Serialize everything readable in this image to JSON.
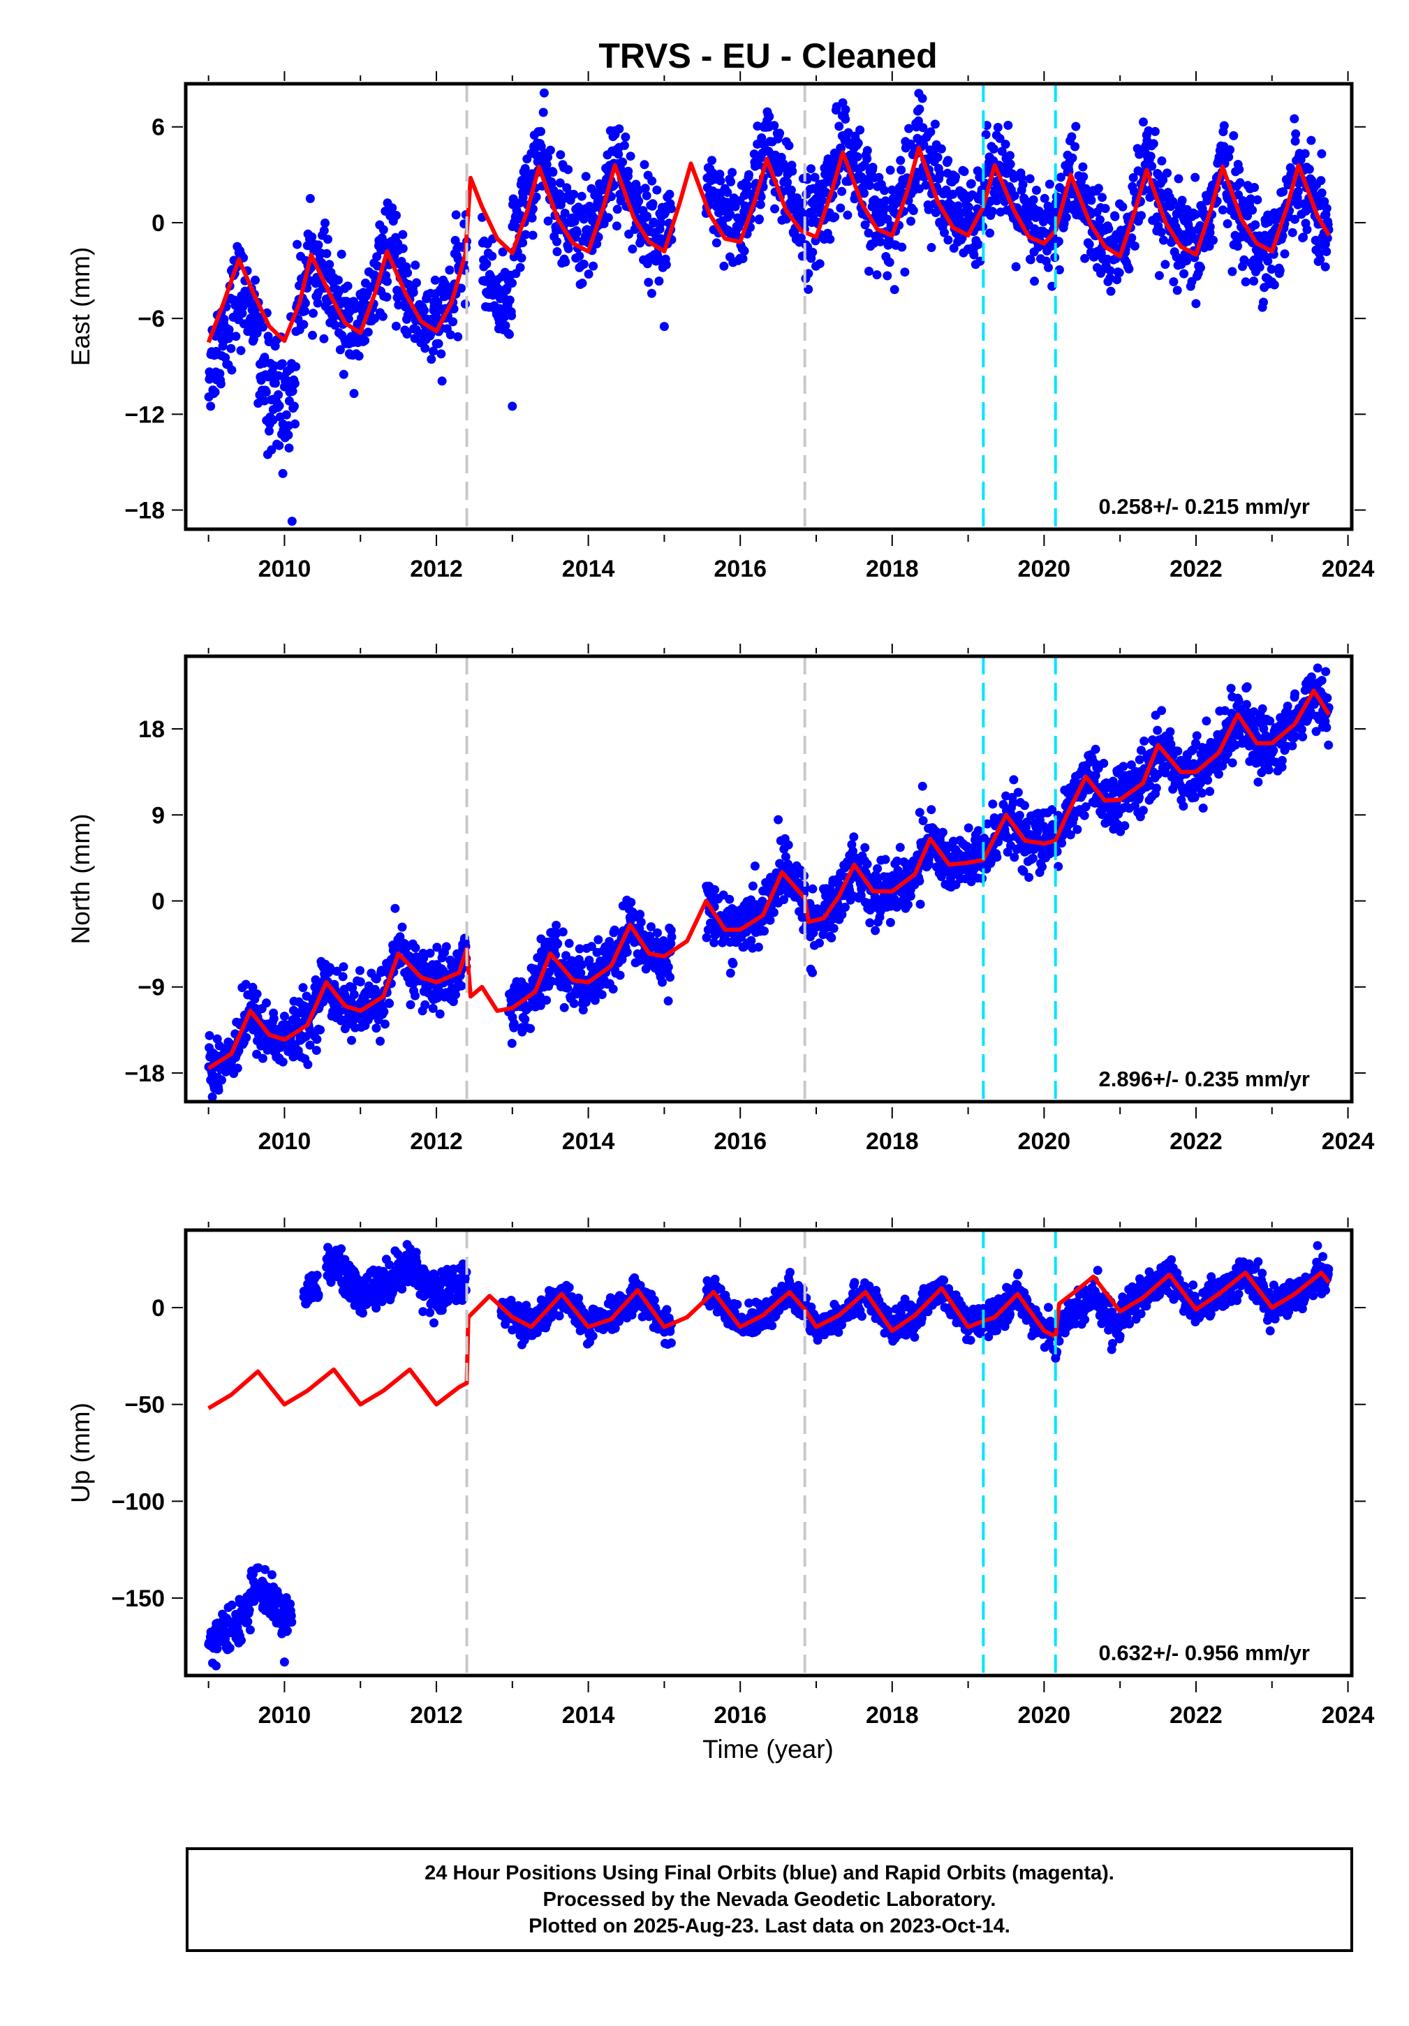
{
  "title": "TRVS  - EU - Cleaned",
  "xlabel": "Time (year)",
  "colors": {
    "observations": "#0000ff",
    "model": "#ff0000",
    "break_gray": "#c8c8c8",
    "break_cyan": "#00e5ff"
  },
  "chart_data": [
    {
      "type": "scatter",
      "name": "east",
      "ylabel": "East (mm)",
      "rate_label": "0.258+/- 0.215 mm/yr",
      "xlim": [
        2008.7,
        2024.05
      ],
      "ylim": [
        -19.2,
        8.7
      ],
      "xticks": [
        2010,
        2012,
        2014,
        2016,
        2018,
        2020,
        2022,
        2024
      ],
      "yticks": [
        6,
        0,
        -6,
        -12,
        -18
      ],
      "ytick_labels": [
        "6",
        "0",
        "−6",
        "−12",
        "−18"
      ],
      "breaks_gray": [
        2012.4,
        2016.85
      ],
      "breaks_cyan": [
        2019.2,
        2020.15
      ],
      "model": [
        [
          2009.0,
          -7.5
        ],
        [
          2009.2,
          -5.0
        ],
        [
          2009.4,
          -2.3
        ],
        [
          2009.6,
          -4.5
        ],
        [
          2009.8,
          -6.5
        ],
        [
          2010.0,
          -7.4
        ],
        [
          2010.2,
          -5.0
        ],
        [
          2010.35,
          -2.0
        ],
        [
          2010.6,
          -4.5
        ],
        [
          2010.8,
          -6.3
        ],
        [
          2011.0,
          -6.9
        ],
        [
          2011.2,
          -4.3
        ],
        [
          2011.35,
          -1.8
        ],
        [
          2011.6,
          -4.5
        ],
        [
          2011.8,
          -6.2
        ],
        [
          2012.0,
          -6.8
        ],
        [
          2012.2,
          -5.0
        ],
        [
          2012.38,
          -2.0
        ],
        [
          2012.45,
          2.8
        ],
        [
          2012.6,
          1.0
        ],
        [
          2012.8,
          -1.0
        ],
        [
          2013.0,
          -1.9
        ],
        [
          2013.2,
          0.8
        ],
        [
          2013.35,
          3.5
        ],
        [
          2013.6,
          0.2
        ],
        [
          2013.8,
          -1.3
        ],
        [
          2014.0,
          -1.8
        ],
        [
          2014.2,
          1.0
        ],
        [
          2014.35,
          3.6
        ],
        [
          2014.6,
          0.3
        ],
        [
          2014.8,
          -1.2
        ],
        [
          2015.0,
          -1.8
        ],
        [
          2015.2,
          1.2
        ],
        [
          2015.35,
          3.7
        ],
        [
          2015.6,
          0.5
        ],
        [
          2015.8,
          -1.0
        ],
        [
          2016.0,
          -1.2
        ],
        [
          2016.2,
          1.5
        ],
        [
          2016.35,
          4.0
        ],
        [
          2016.6,
          0.8
        ],
        [
          2016.8,
          -0.5
        ],
        [
          2017.0,
          -0.9
        ],
        [
          2017.2,
          1.9
        ],
        [
          2017.35,
          4.4
        ],
        [
          2017.6,
          1.2
        ],
        [
          2017.8,
          -0.4
        ],
        [
          2018.0,
          -0.8
        ],
        [
          2018.2,
          2.0
        ],
        [
          2018.35,
          4.7
        ],
        [
          2018.6,
          1.3
        ],
        [
          2018.8,
          -0.3
        ],
        [
          2019.0,
          -0.8
        ],
        [
          2019.2,
          1.0
        ],
        [
          2019.35,
          3.6
        ],
        [
          2019.6,
          0.8
        ],
        [
          2019.8,
          -0.9
        ],
        [
          2020.0,
          -1.3
        ],
        [
          2020.15,
          -0.5
        ],
        [
          2020.35,
          3.0
        ],
        [
          2020.6,
          0.0
        ],
        [
          2020.8,
          -1.5
        ],
        [
          2021.0,
          -2.1
        ],
        [
          2021.2,
          0.8
        ],
        [
          2021.35,
          3.3
        ],
        [
          2021.6,
          0.0
        ],
        [
          2021.8,
          -1.5
        ],
        [
          2022.0,
          -2.0
        ],
        [
          2022.2,
          0.9
        ],
        [
          2022.35,
          3.5
        ],
        [
          2022.6,
          0.2
        ],
        [
          2022.8,
          -1.3
        ],
        [
          2023.0,
          -1.8
        ],
        [
          2023.2,
          1.0
        ],
        [
          2023.35,
          3.6
        ],
        [
          2023.6,
          0.4
        ],
        [
          2023.75,
          -0.8
        ]
      ],
      "obs_segments": [
        {
          "from": 2009.0,
          "to": 2009.45,
          "offset": -1.8,
          "scatter": 1.6
        },
        {
          "from": 2009.45,
          "to": 2009.65,
          "offset": -1.5,
          "scatter": 1.2
        },
        {
          "from": 2009.65,
          "to": 2010.15,
          "offset": -3.8,
          "scatter": 2.0
        },
        {
          "from": 2010.15,
          "to": 2011.0,
          "offset": 0.0,
          "scatter": 1.4
        },
        {
          "from": 2011.0,
          "to": 2012.4,
          "offset": 0.2,
          "scatter": 1.4
        },
        {
          "from": 2012.6,
          "to": 2013.0,
          "offset": -3.5,
          "scatter": 1.2
        },
        {
          "from": 2013.0,
          "to": 2015.1,
          "offset": 0.8,
          "scatter": 1.5
        },
        {
          "from": 2015.55,
          "to": 2016.85,
          "offset": 0.9,
          "scatter": 1.5
        },
        {
          "from": 2016.85,
          "to": 2019.2,
          "offset": 0.7,
          "scatter": 1.6
        },
        {
          "from": 2019.2,
          "to": 2020.15,
          "offset": 0.4,
          "scatter": 1.5
        },
        {
          "from": 2020.15,
          "to": 2023.75,
          "offset": 0.1,
          "scatter": 1.5
        }
      ],
      "outliers": [
        [
          2010.1,
          -18.7
        ],
        [
          2013.0,
          -11.5
        ],
        [
          2015.0,
          -6.5
        ],
        [
          2010.05,
          -13.3
        ],
        [
          2018.35,
          8.1
        ]
      ]
    },
    {
      "type": "scatter",
      "name": "north",
      "ylabel": "North (mm)",
      "rate_label": "2.896+/- 0.235 mm/yr",
      "xlim": [
        2008.7,
        2024.05
      ],
      "ylim": [
        -21.0,
        25.6
      ],
      "xticks": [
        2010,
        2012,
        2014,
        2016,
        2018,
        2020,
        2022,
        2024
      ],
      "yticks": [
        18,
        9,
        0,
        -9,
        -18
      ],
      "ytick_labels": [
        "18",
        "9",
        "0",
        "−9",
        "−18"
      ],
      "breaks_gray": [
        2012.4,
        2016.85
      ],
      "breaks_cyan": [
        2019.2,
        2020.15
      ],
      "model": [
        [
          2009.0,
          -17.5
        ],
        [
          2009.3,
          -16.0
        ],
        [
          2009.55,
          -11.5
        ],
        [
          2009.8,
          -14.0
        ],
        [
          2010.0,
          -14.5
        ],
        [
          2010.3,
          -13.0
        ],
        [
          2010.55,
          -8.5
        ],
        [
          2010.8,
          -11.0
        ],
        [
          2011.0,
          -11.5
        ],
        [
          2011.3,
          -10.0
        ],
        [
          2011.5,
          -5.5
        ],
        [
          2011.8,
          -8.0
        ],
        [
          2012.0,
          -8.5
        ],
        [
          2012.3,
          -7.5
        ],
        [
          2012.4,
          -5.0
        ],
        [
          2012.45,
          -10.0
        ],
        [
          2012.6,
          -9.0
        ],
        [
          2012.8,
          -11.5
        ],
        [
          2013.0,
          -11.2
        ],
        [
          2013.3,
          -9.5
        ],
        [
          2013.5,
          -5.5
        ],
        [
          2013.8,
          -8.3
        ],
        [
          2014.0,
          -8.5
        ],
        [
          2014.3,
          -6.8
        ],
        [
          2014.55,
          -2.5
        ],
        [
          2014.8,
          -5.5
        ],
        [
          2015.0,
          -5.8
        ],
        [
          2015.3,
          -4.2
        ],
        [
          2015.55,
          0.0
        ],
        [
          2015.8,
          -3.0
        ],
        [
          2016.0,
          -3.0
        ],
        [
          2016.3,
          -1.5
        ],
        [
          2016.55,
          3.0
        ],
        [
          2016.85,
          0.3
        ],
        [
          2016.9,
          -2.2
        ],
        [
          2017.1,
          -1.8
        ],
        [
          2017.3,
          0.5
        ],
        [
          2017.5,
          3.8
        ],
        [
          2017.75,
          1.0
        ],
        [
          2018.0,
          1.0
        ],
        [
          2018.3,
          2.8
        ],
        [
          2018.5,
          6.5
        ],
        [
          2018.75,
          3.8
        ],
        [
          2019.0,
          4.0
        ],
        [
          2019.2,
          4.3
        ],
        [
          2019.5,
          9.0
        ],
        [
          2019.75,
          6.3
        ],
        [
          2020.0,
          6.0
        ],
        [
          2020.15,
          6.3
        ],
        [
          2020.3,
          9.0
        ],
        [
          2020.55,
          13.0
        ],
        [
          2020.8,
          10.5
        ],
        [
          2021.0,
          10.6
        ],
        [
          2021.3,
          12.3
        ],
        [
          2021.5,
          16.3
        ],
        [
          2021.8,
          13.5
        ],
        [
          2022.0,
          13.5
        ],
        [
          2022.3,
          15.5
        ],
        [
          2022.55,
          19.5
        ],
        [
          2022.8,
          16.5
        ],
        [
          2023.0,
          16.5
        ],
        [
          2023.3,
          18.5
        ],
        [
          2023.55,
          22.0
        ],
        [
          2023.75,
          19.5
        ]
      ],
      "obs_segments": [
        {
          "from": 2009.0,
          "to": 2012.4,
          "offset": 0.0,
          "scatter": 1.6
        },
        {
          "from": 2012.95,
          "to": 2015.1,
          "offset": 0.0,
          "scatter": 1.6
        },
        {
          "from": 2015.55,
          "to": 2016.85,
          "offset": 0.0,
          "scatter": 1.5
        },
        {
          "from": 2016.85,
          "to": 2020.15,
          "offset": 0.0,
          "scatter": 1.6
        },
        {
          "from": 2020.15,
          "to": 2023.75,
          "offset": 0.0,
          "scatter": 1.6
        }
      ],
      "outliers": [
        [
          2009.05,
          -20.5
        ],
        [
          2016.95,
          -7.5
        ],
        [
          2018.4,
          12.0
        ],
        [
          2016.5,
          8.5
        ]
      ]
    },
    {
      "type": "scatter",
      "name": "up",
      "ylabel": "Up (mm)",
      "rate_label": "0.632+/- 0.956 mm/yr",
      "xlim": [
        2008.7,
        2024.05
      ],
      "ylim": [
        -190,
        40
      ],
      "xticks": [
        2010,
        2012,
        2014,
        2016,
        2018,
        2020,
        2022,
        2024
      ],
      "yticks": [
        0,
        -50,
        -100,
        -150
      ],
      "ytick_labels": [
        "0",
        "−50",
        "−100",
        "−150"
      ],
      "breaks_gray": [
        2012.4,
        2016.85
      ],
      "breaks_cyan": [
        2019.2,
        2020.15
      ],
      "model": [
        [
          2009.0,
          -52
        ],
        [
          2009.3,
          -45
        ],
        [
          2009.65,
          -33
        ],
        [
          2010.0,
          -50
        ],
        [
          2010.3,
          -43
        ],
        [
          2010.65,
          -32
        ],
        [
          2011.0,
          -50
        ],
        [
          2011.3,
          -43
        ],
        [
          2011.65,
          -32
        ],
        [
          2012.0,
          -50
        ],
        [
          2012.3,
          -41
        ],
        [
          2012.4,
          -39
        ],
        [
          2012.42,
          -5
        ],
        [
          2012.7,
          6
        ],
        [
          2013.0,
          -5
        ],
        [
          2013.25,
          -10
        ],
        [
          2013.65,
          7
        ],
        [
          2014.0,
          -10
        ],
        [
          2014.3,
          -6
        ],
        [
          2014.65,
          9
        ],
        [
          2015.0,
          -10
        ],
        [
          2015.3,
          -5
        ],
        [
          2015.65,
          8
        ],
        [
          2016.0,
          -10
        ],
        [
          2016.3,
          -4
        ],
        [
          2016.65,
          8
        ],
        [
          2016.85,
          -1
        ],
        [
          2017.0,
          -10
        ],
        [
          2017.3,
          -4
        ],
        [
          2017.65,
          8
        ],
        [
          2018.0,
          -12
        ],
        [
          2018.3,
          -4
        ],
        [
          2018.65,
          10
        ],
        [
          2019.0,
          -10
        ],
        [
          2019.2,
          -7
        ],
        [
          2019.35,
          -5
        ],
        [
          2019.65,
          7
        ],
        [
          2020.0,
          -12
        ],
        [
          2020.15,
          -15
        ],
        [
          2020.2,
          2
        ],
        [
          2020.4,
          8
        ],
        [
          2020.65,
          16
        ],
        [
          2021.0,
          -2
        ],
        [
          2021.3,
          5
        ],
        [
          2021.65,
          17
        ],
        [
          2022.0,
          -1
        ],
        [
          2022.3,
          7
        ],
        [
          2022.65,
          18
        ],
        [
          2023.0,
          0
        ],
        [
          2023.3,
          7
        ],
        [
          2023.65,
          18
        ],
        [
          2023.75,
          13
        ]
      ],
      "obs_segments": [
        {
          "from": 2009.0,
          "to": 2009.55,
          "offset": -120,
          "scatter": 5.0
        },
        {
          "from": 2009.55,
          "to": 2010.1,
          "offset": -110,
          "scatter": 5.0
        },
        {
          "from": 2010.25,
          "to": 2010.45,
          "offset": 50,
          "scatter": 5.0
        },
        {
          "from": 2010.55,
          "to": 2012.4,
          "offset": 55,
          "scatter": 5.5
        },
        {
          "from": 2012.85,
          "to": 2015.1,
          "offset": 0.0,
          "scatter": 4.0
        },
        {
          "from": 2015.55,
          "to": 2020.15,
          "offset": 0.0,
          "scatter": 4.0
        },
        {
          "from": 2020.15,
          "to": 2021.0,
          "offset": -10,
          "scatter": 4.5
        },
        {
          "from": 2021.0,
          "to": 2023.75,
          "offset": 0.0,
          "scatter": 4.5
        }
      ],
      "outliers": [
        [
          2009.1,
          -185
        ],
        [
          2010.0,
          -183
        ],
        [
          2011.6,
          27
        ],
        [
          2023.6,
          32
        ]
      ]
    }
  ],
  "footer": {
    "line1": "24 Hour Positions Using Final Orbits (blue) and Rapid Orbits (magenta).",
    "line2": "Processed by the Nevada Geodetic Laboratory.",
    "line3": "Plotted on 2025-Aug-23. Last data on 2023-Oct-14."
  }
}
